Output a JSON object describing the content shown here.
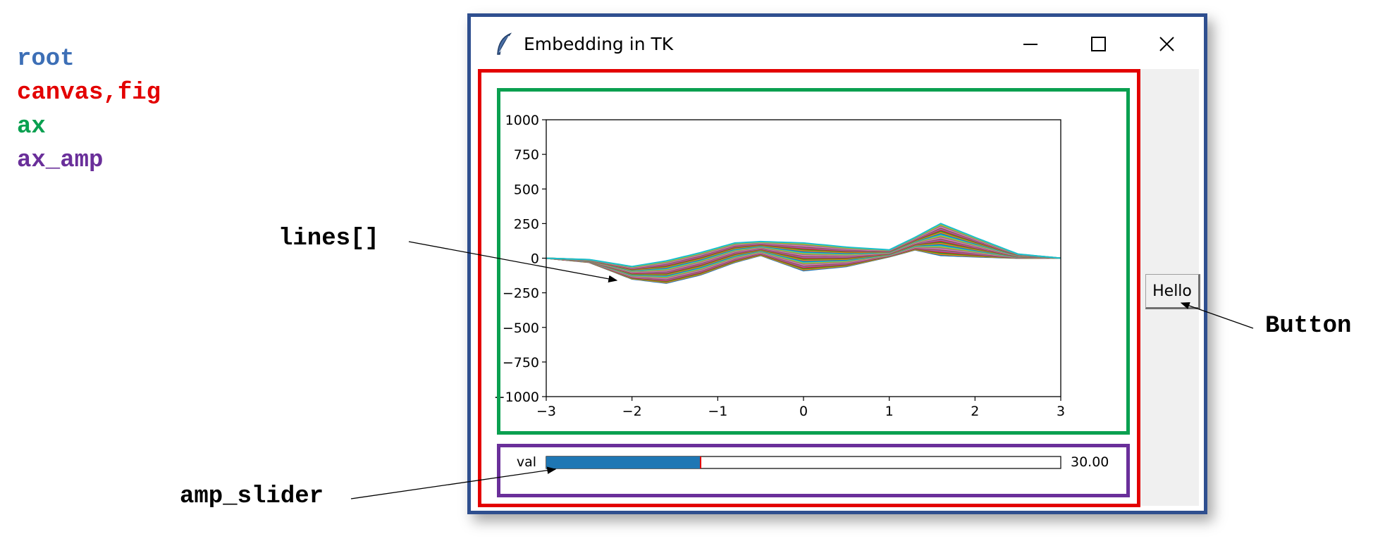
{
  "legend": {
    "root": "root",
    "canvas": "canvas,fig",
    "ax": "ax",
    "ax_amp": "ax_amp"
  },
  "callouts": {
    "lines": "lines[]",
    "button": "Button",
    "slider": "amp_slider"
  },
  "colors": {
    "root": "#3d6fb6",
    "canvas": "#e30000",
    "ax": "#0aa050",
    "ax_amp": "#6a2f9a",
    "slider_fill": "#1f77b4"
  },
  "window": {
    "title": "Embedding in TK",
    "icon": "feather-icon",
    "controls": [
      "minimize-icon",
      "maximize-icon",
      "close-icon"
    ]
  },
  "button": {
    "label": "Hello"
  },
  "slider": {
    "label": "val",
    "value": 30.0,
    "value_text": "30.00",
    "min": 0,
    "max": 100
  },
  "chart_data": {
    "type": "line",
    "title": "",
    "xlabel": "",
    "ylabel": "",
    "xlim": [
      -3,
      3
    ],
    "ylim": [
      -1000,
      1000
    ],
    "xticks": [
      -3,
      -2,
      -1,
      0,
      1,
      2,
      3
    ],
    "xtick_labels": [
      "−3",
      "−2",
      "−1",
      "0",
      "1",
      "2",
      "3"
    ],
    "yticks": [
      1000,
      750,
      500,
      250,
      0,
      -250,
      -500,
      -750,
      -1000
    ],
    "ytick_labels": [
      "1000",
      "750",
      "500",
      "250",
      "0",
      "−250",
      "−500",
      "−750",
      "−1000"
    ],
    "grid": false,
    "series_count": 30,
    "series_colors": [
      "#1f77b4",
      "#ff7f0e",
      "#2ca02c",
      "#d62728",
      "#9467bd",
      "#8c564b",
      "#e377c2",
      "#7f7f7f",
      "#bcbd22",
      "#17becf"
    ],
    "envelope": {
      "x": [
        -3,
        -2.5,
        -2,
        -1.6,
        -1.2,
        -0.8,
        -0.5,
        0,
        0.5,
        1,
        1.3,
        1.6,
        2,
        2.5,
        3
      ],
      "upper": [
        0,
        -10,
        -60,
        -20,
        40,
        110,
        120,
        110,
        80,
        60,
        150,
        250,
        150,
        30,
        0
      ],
      "lower": [
        0,
        -30,
        -150,
        -180,
        -120,
        -30,
        20,
        -90,
        -60,
        10,
        60,
        20,
        10,
        0,
        0
      ]
    }
  }
}
